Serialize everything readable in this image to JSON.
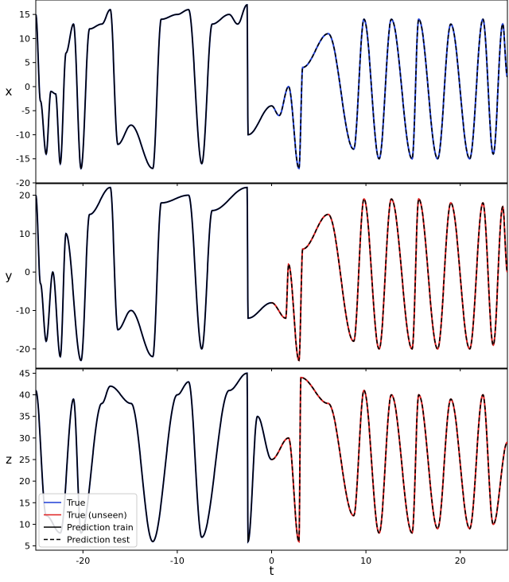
{
  "chart_data": {
    "type": "line",
    "xlabel": "t",
    "xlim": [
      -25,
      25
    ],
    "xticks": [
      -20,
      -10,
      0,
      10,
      20
    ],
    "train_test_split_t": 0,
    "legend": {
      "placement": "bottom-left (bottom panel)",
      "entries": [
        {
          "label": "True",
          "color": "#1f3fd6",
          "style": "solid"
        },
        {
          "label": "True (unseen)",
          "color": "#e02020",
          "style": "solid"
        },
        {
          "label": "Prediction train",
          "color": "#000000",
          "style": "solid"
        },
        {
          "label": "Prediction test",
          "color": "#000000",
          "style": "dashed"
        }
      ]
    },
    "panels": [
      {
        "name": "x",
        "ylabel": "x",
        "ylim": [
          -20,
          18
        ],
        "yticks": [
          -20,
          -15,
          -10,
          -5,
          0,
          5,
          10,
          15
        ],
        "unseen_color": "#1f3fd6",
        "keypoints": [
          [
            -25,
            15
          ],
          [
            -24.5,
            -3
          ],
          [
            -23.9,
            -14
          ],
          [
            -23.4,
            -1
          ],
          [
            -22.9,
            -1.5
          ],
          [
            -22.4,
            -16
          ],
          [
            -21.8,
            7
          ],
          [
            -21,
            13
          ],
          [
            -20.2,
            -17
          ],
          [
            -19.3,
            12
          ],
          [
            -18,
            13
          ],
          [
            -17.1,
            16
          ],
          [
            -16.3,
            -12
          ],
          [
            -14.9,
            -8
          ],
          [
            -12.6,
            -17
          ],
          [
            -11.7,
            14
          ],
          [
            -10,
            15
          ],
          [
            -8.8,
            16
          ],
          [
            -7.4,
            -16
          ],
          [
            -6.3,
            13
          ],
          [
            -4.5,
            15
          ],
          [
            -3.6,
            13
          ],
          [
            -2.6,
            17
          ],
          [
            -2.5,
            -10
          ],
          [
            0,
            -4
          ],
          [
            0.8,
            -6
          ],
          [
            1.8,
            0
          ],
          [
            2.9,
            -17
          ],
          [
            3.3,
            4
          ],
          [
            6,
            11
          ],
          [
            8.7,
            -13
          ],
          [
            9.8,
            14
          ],
          [
            11.4,
            -15
          ],
          [
            12.7,
            14
          ],
          [
            14.9,
            -15
          ],
          [
            15.6,
            14
          ],
          [
            17.6,
            -15
          ],
          [
            19,
            13
          ],
          [
            21,
            -15
          ],
          [
            22.4,
            14
          ],
          [
            23.5,
            -14
          ],
          [
            24.5,
            13
          ],
          [
            25,
            2
          ]
        ]
      },
      {
        "name": "y",
        "ylabel": "y",
        "ylim": [
          -25,
          23
        ],
        "yticks": [
          -20,
          -10,
          0,
          10,
          20
        ],
        "unseen_color": "#e02020",
        "keypoints": [
          [
            -25,
            20
          ],
          [
            -24.5,
            -3
          ],
          [
            -23.9,
            -18
          ],
          [
            -23.2,
            0
          ],
          [
            -22.4,
            -22
          ],
          [
            -21.8,
            10
          ],
          [
            -20.2,
            -23
          ],
          [
            -19.3,
            15
          ],
          [
            -17.1,
            22
          ],
          [
            -16.3,
            -15
          ],
          [
            -14.9,
            -10
          ],
          [
            -12.6,
            -22
          ],
          [
            -11.7,
            18
          ],
          [
            -8.8,
            20
          ],
          [
            -7.4,
            -20
          ],
          [
            -6.3,
            16
          ],
          [
            -2.6,
            22
          ],
          [
            -2.5,
            -12
          ],
          [
            0,
            -8
          ],
          [
            1.5,
            -12
          ],
          [
            1.8,
            2
          ],
          [
            2.9,
            -23
          ],
          [
            3.3,
            6
          ],
          [
            6,
            15
          ],
          [
            8.7,
            -18
          ],
          [
            9.8,
            19
          ],
          [
            11.4,
            -20
          ],
          [
            12.7,
            19
          ],
          [
            14.9,
            -20
          ],
          [
            15.6,
            19
          ],
          [
            17.6,
            -20
          ],
          [
            19,
            18
          ],
          [
            21,
            -20
          ],
          [
            22.4,
            18
          ],
          [
            23.5,
            -19
          ],
          [
            24.5,
            17
          ],
          [
            25,
            0
          ]
        ]
      },
      {
        "name": "z",
        "ylabel": "z",
        "ylim": [
          4,
          46
        ],
        "yticks": [
          5,
          10,
          15,
          20,
          25,
          30,
          35,
          40,
          45
        ],
        "unseen_color": "#e02020",
        "keypoints": [
          [
            -25,
            41
          ],
          [
            -23.9,
            12
          ],
          [
            -22.4,
            8
          ],
          [
            -21,
            39
          ],
          [
            -20.2,
            8
          ],
          [
            -18,
            38
          ],
          [
            -17.1,
            42
          ],
          [
            -14.9,
            38
          ],
          [
            -12.6,
            6
          ],
          [
            -10,
            40
          ],
          [
            -8.8,
            43
          ],
          [
            -7.4,
            7
          ],
          [
            -4.5,
            41
          ],
          [
            -2.6,
            45
          ],
          [
            -2.5,
            6
          ],
          [
            -1.5,
            35
          ],
          [
            0,
            25
          ],
          [
            1.8,
            30
          ],
          [
            2.9,
            6
          ],
          [
            3.1,
            44
          ],
          [
            6,
            38
          ],
          [
            8.7,
            12
          ],
          [
            9.8,
            41
          ],
          [
            11.4,
            8
          ],
          [
            12.7,
            40
          ],
          [
            14.9,
            8
          ],
          [
            15.6,
            40
          ],
          [
            17.6,
            9
          ],
          [
            19,
            39
          ],
          [
            21,
            9
          ],
          [
            22.4,
            40
          ],
          [
            23.5,
            10
          ],
          [
            25,
            29
          ]
        ]
      }
    ]
  }
}
